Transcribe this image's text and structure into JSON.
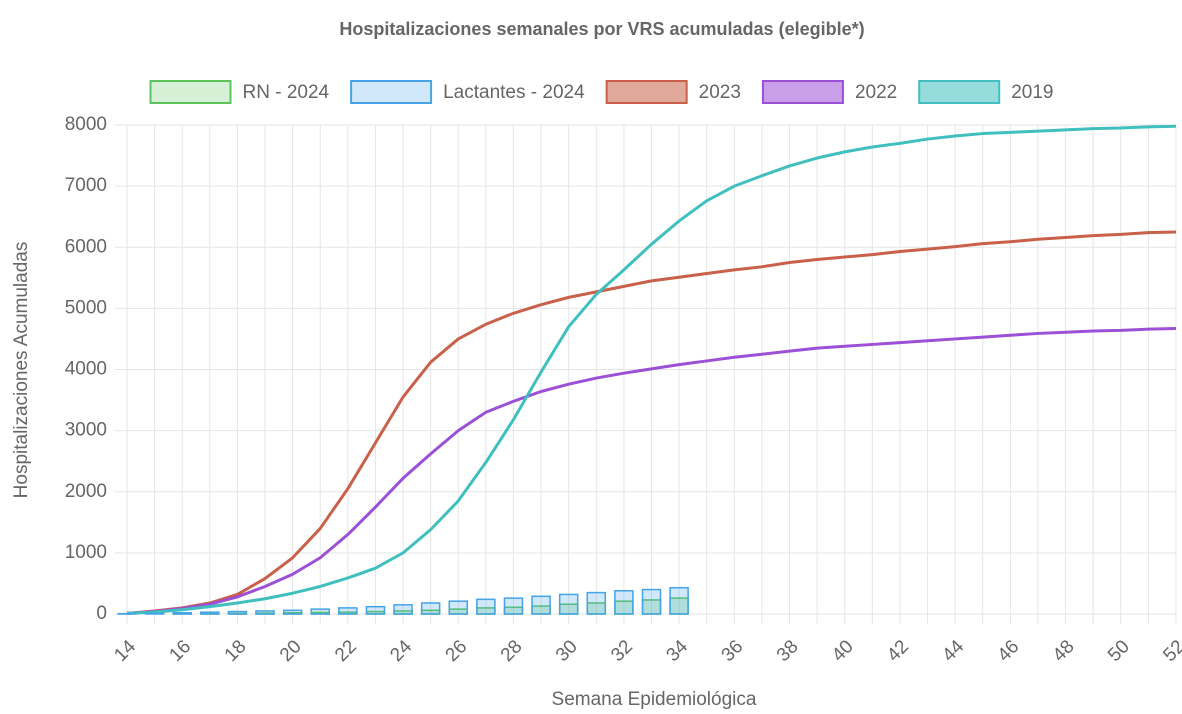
{
  "chart_data": {
    "type": "line",
    "title": "Hospitalizaciones semanales por VRS acumuladas (elegible*)",
    "x_label": "Semana Epidemiológica",
    "y_label": "Hospitalizaciones Acumuladas",
    "categories": [
      14,
      null,
      16,
      null,
      18,
      null,
      20,
      null,
      22,
      null,
      24,
      null,
      26,
      null,
      28,
      null,
      30,
      null,
      32,
      null,
      34,
      null,
      36,
      null,
      38,
      null,
      40,
      null,
      42,
      null,
      44,
      null,
      46,
      null,
      48,
      null,
      50,
      null,
      52
    ],
    "ylim": [
      0,
      8000
    ],
    "yticks": [
      0,
      1000,
      2000,
      3000,
      4000,
      5000,
      6000,
      7000,
      8000
    ],
    "grid": true,
    "legend": "top",
    "series": [
      {
        "name": "RN - 2024",
        "type": "bar",
        "color": "#5cc45c",
        "values": [
          0,
          0,
          5,
          10,
          10,
          15,
          20,
          25,
          30,
          40,
          50,
          60,
          80,
          100,
          110,
          130,
          160,
          180,
          210,
          230,
          260,
          null,
          null,
          null,
          null,
          null,
          null,
          null,
          null,
          null,
          null,
          null,
          null,
          null,
          null,
          null,
          null,
          null,
          null
        ]
      },
      {
        "name": "Lactantes - 2024",
        "type": "bar",
        "color": "#45a3e6",
        "values": [
          5,
          10,
          20,
          30,
          40,
          50,
          60,
          80,
          100,
          120,
          150,
          180,
          210,
          240,
          260,
          290,
          320,
          350,
          380,
          400,
          430,
          null,
          null,
          null,
          null,
          null,
          null,
          null,
          null,
          null,
          null,
          null,
          null,
          null,
          null,
          null,
          null,
          null,
          null
        ]
      },
      {
        "name": "2023",
        "type": "line",
        "color": "#c8604a",
        "values": [
          10,
          50,
          100,
          180,
          320,
          580,
          920,
          1400,
          2050,
          2800,
          3550,
          4120,
          4500,
          4740,
          4920,
          5060,
          5180,
          5270,
          5360,
          5450,
          5510,
          5570,
          5630,
          5680,
          5750,
          5800,
          5840,
          5880,
          5930,
          5970,
          6010,
          6060,
          6090,
          6130,
          6160,
          6190,
          6210,
          6240,
          6250
        ]
      },
      {
        "name": "2022",
        "type": "line",
        "color": "#9b50d6",
        "values": [
          10,
          40,
          90,
          160,
          280,
          450,
          650,
          920,
          1300,
          1750,
          2220,
          2620,
          3000,
          3300,
          3480,
          3640,
          3760,
          3860,
          3940,
          4010,
          4080,
          4140,
          4200,
          4250,
          4300,
          4350,
          4380,
          4410,
          4440,
          4470,
          4500,
          4530,
          4560,
          4590,
          4610,
          4630,
          4640,
          4660,
          4670
        ]
      },
      {
        "name": "2019",
        "type": "line",
        "color": "#40bfbf",
        "values": [
          10,
          30,
          70,
          120,
          180,
          250,
          340,
          450,
          590,
          750,
          1000,
          1380,
          1850,
          2480,
          3180,
          3960,
          4700,
          5230,
          5630,
          6050,
          6430,
          6760,
          7000,
          7170,
          7330,
          7460,
          7560,
          7640,
          7700,
          7770,
          7820,
          7860,
          7880,
          7900,
          7920,
          7940,
          7950,
          7970,
          7980
        ]
      }
    ]
  }
}
